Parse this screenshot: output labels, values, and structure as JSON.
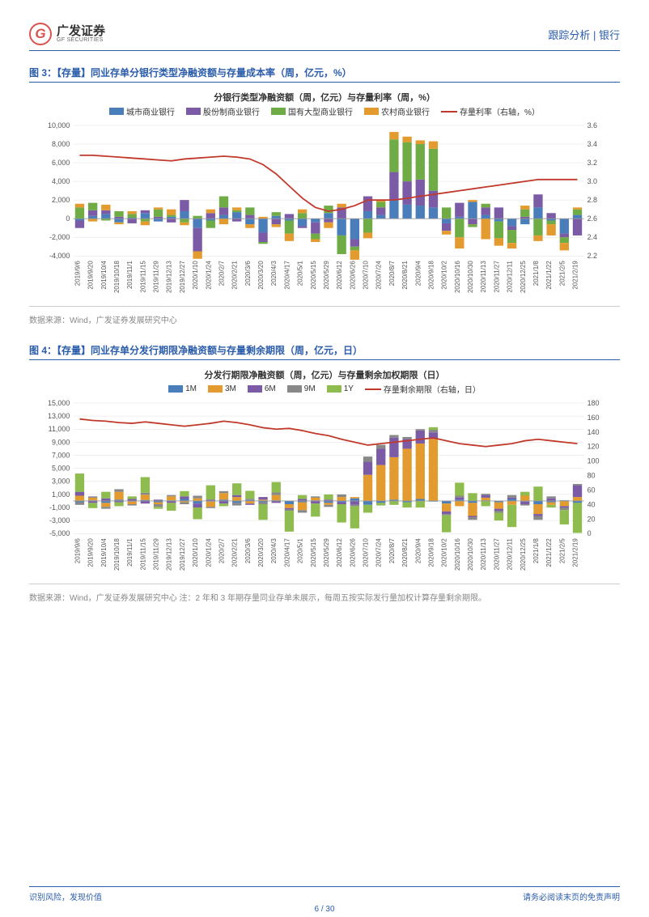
{
  "header": {
    "logo_cn": "广发证券",
    "logo_en": "GF SECURITIES",
    "logo_letter": "G",
    "right": "跟踪分析 | 银行"
  },
  "fig3": {
    "title": "图 3：【存量】同业存单分银行类型净融资额与存量成本率（周，亿元，%）",
    "subtitle": "分银行类型净融资额（周，亿元）与存量利率（周，%）",
    "legend": [
      {
        "label": "城市商业银行",
        "color": "#4a7ebb"
      },
      {
        "label": "股份制商业银行",
        "color": "#7b5ba6"
      },
      {
        "label": "国有大型商业银行",
        "color": "#6fac46"
      },
      {
        "label": "农村商业银行",
        "color": "#e39a2e"
      },
      {
        "label": "存量利率（右轴，%）",
        "color": "#c0392b",
        "type": "line"
      }
    ],
    "y_left": {
      "min": -4000,
      "max": 10000,
      "step": 2000,
      "ticks": [
        "-4,000",
        "-2,000",
        "0",
        "2,000",
        "4,000",
        "6,000",
        "8,000",
        "10,000"
      ]
    },
    "y_right": {
      "min": 2.2,
      "max": 3.6,
      "step": 0.2,
      "ticks": [
        "2.2",
        "2.4",
        "2.6",
        "2.8",
        "3.0",
        "3.2",
        "3.4",
        "3.6"
      ]
    },
    "x_labels": [
      "2019/9/6",
      "2019/9/20",
      "2019/10/4",
      "2019/10/18",
      "2019/11/1",
      "2019/11/15",
      "2019/11/29",
      "2019/12/13",
      "2019/12/27",
      "2020/1/10",
      "2020/1/24",
      "2020/2/7",
      "2020/2/21",
      "2020/3/6",
      "2020/3/20",
      "2020/4/3",
      "2020/4/17",
      "2020/5/1",
      "2020/5/15",
      "2020/5/29",
      "2020/6/12",
      "2020/6/26",
      "2020/7/10",
      "2020/7/24",
      "2020/8/7",
      "2020/8/21",
      "2020/9/4",
      "2020/9/18",
      "2020/10/2",
      "2020/10/16",
      "2020/10/30",
      "2020/11/13",
      "2020/11/27",
      "2020/12/11",
      "2020/12/25",
      "2021/1/8",
      "2021/1/22",
      "2021/2/5",
      "2021/2/19"
    ],
    "series": {
      "city": [
        -200,
        300,
        500,
        -400,
        100,
        600,
        -300,
        200,
        800,
        -1000,
        -200,
        400,
        700,
        -600,
        -1500,
        300,
        -200,
        -800,
        -400,
        600,
        -1800,
        -2200,
        800,
        400,
        2000,
        1500,
        1400,
        1200,
        -500,
        200,
        1800,
        400,
        -300,
        -800,
        -600,
        1200,
        -200,
        -1600,
        400
      ],
      "joint": [
        -800,
        600,
        400,
        200,
        -500,
        300,
        200,
        -400,
        1200,
        -2500,
        600,
        800,
        -300,
        400,
        -1000,
        -600,
        500,
        -200,
        -1200,
        -400,
        1200,
        -800,
        1600,
        800,
        3000,
        2500,
        2800,
        1800,
        -800,
        1500,
        -600,
        800,
        1200,
        -400,
        200,
        1400,
        600,
        -400,
        -1800
      ],
      "state": [
        1200,
        800,
        -200,
        600,
        400,
        -300,
        800,
        200,
        -400,
        300,
        -800,
        1200,
        200,
        800,
        -200,
        400,
        -1400,
        600,
        -600,
        800,
        -2000,
        -400,
        -1500,
        600,
        3500,
        4200,
        3800,
        4500,
        1200,
        -2000,
        -300,
        400,
        -1800,
        -1400,
        800,
        -1800,
        -400,
        -600,
        600
      ],
      "rural": [
        400,
        -300,
        600,
        -200,
        300,
        -400,
        200,
        600,
        -300,
        -800,
        400,
        -600,
        300,
        -400,
        200,
        -300,
        -800,
        400,
        -300,
        -600,
        400,
        -1000,
        -600,
        200,
        800,
        600,
        400,
        800,
        -400,
        -1200,
        200,
        -2200,
        -800,
        -600,
        400,
        -600,
        -1200,
        -800,
        200
      ],
      "rate": [
        3.28,
        3.28,
        3.27,
        3.26,
        3.25,
        3.24,
        3.23,
        3.22,
        3.24,
        3.25,
        3.26,
        3.27,
        3.26,
        3.24,
        3.18,
        3.08,
        2.95,
        2.82,
        2.72,
        2.68,
        2.7,
        2.74,
        2.8,
        2.8,
        2.8,
        2.82,
        2.84,
        2.86,
        2.88,
        2.9,
        2.92,
        2.94,
        2.96,
        2.98,
        3.0,
        3.02,
        3.02,
        3.02,
        3.02
      ]
    },
    "source": "数据来源：Wind，广发证券发展研究中心"
  },
  "fig4": {
    "title": "图 4：【存量】同业存单分发行期限净融资额与存量剩余期限（周，亿元，日）",
    "subtitle": "分发行期限净融资额（周，亿元）与存量剩余加权期限（日）",
    "legend": [
      {
        "label": "1M",
        "color": "#4a7ebb"
      },
      {
        "label": "3M",
        "color": "#e39a2e"
      },
      {
        "label": "6M",
        "color": "#7b5ba6"
      },
      {
        "label": "9M",
        "color": "#888888"
      },
      {
        "label": "1Y",
        "color": "#8fbc4f"
      },
      {
        "label": "存量剩余期限（右轴，日）",
        "color": "#c0392b",
        "type": "line"
      }
    ],
    "y_left": {
      "min": -5000,
      "max": 15000,
      "step": 2000,
      "ticks": [
        "-5,000",
        "-3,000",
        "-1,000",
        "1,000",
        "3,000",
        "5,000",
        "7,000",
        "9,000",
        "11,000",
        "13,000",
        "15,000"
      ]
    },
    "y_right": {
      "min": 0,
      "max": 180,
      "step": 20,
      "ticks": [
        "0",
        "20",
        "40",
        "60",
        "80",
        "100",
        "120",
        "140",
        "160",
        "180"
      ]
    },
    "x_labels": [
      "2019/9/6",
      "2019/9/20",
      "2019/10/4",
      "2019/10/18",
      "2019/11/1",
      "2019/11/15",
      "2019/11/29",
      "2019/12/13",
      "2019/12/27",
      "2020/1/10",
      "2020/1/24",
      "2020/2/7",
      "2020/2/21",
      "2020/3/6",
      "2020/3/20",
      "2020/4/3",
      "2020/4/17",
      "2020/5/1",
      "2020/5/15",
      "2020/5/29",
      "2020/6/12",
      "2020/6/26",
      "2020/7/10",
      "2020/7/24",
      "2020/8/7",
      "2020/8/21",
      "2020/9/4",
      "2020/9/18",
      "2020/10/2",
      "2020/10/16",
      "2020/10/30",
      "2020/11/13",
      "2020/11/27",
      "2020/12/11",
      "2020/12/25",
      "2021/1/8",
      "2021/1/22",
      "2021/2/5",
      "2021/2/19"
    ],
    "series": {
      "m1": [
        -200,
        100,
        -300,
        200,
        -100,
        150,
        -200,
        100,
        300,
        -400,
        -100,
        200,
        -300,
        150,
        -200,
        100,
        -500,
        -200,
        100,
        -300,
        -200,
        400,
        -600,
        -300,
        200,
        -200,
        300,
        -100,
        -400,
        200,
        -300,
        100,
        -200,
        300,
        -100,
        -500,
        -200,
        100,
        -300
      ],
      "m3": [
        800,
        400,
        -600,
        1200,
        -400,
        800,
        -300,
        600,
        -200,
        400,
        -800,
        1000,
        600,
        -400,
        200,
        800,
        -600,
        -1200,
        400,
        -300,
        600,
        200,
        4000,
        5500,
        6500,
        8000,
        8500,
        9500,
        -1200,
        -800,
        -2000,
        400,
        -1000,
        -600,
        800,
        -1500,
        -400,
        -800,
        600
      ],
      "m6": [
        600,
        -300,
        400,
        -200,
        300,
        -400,
        200,
        -300,
        400,
        -600,
        200,
        -400,
        300,
        -200,
        400,
        -300,
        -200,
        300,
        -400,
        200,
        -300,
        -600,
        2000,
        2500,
        3000,
        1500,
        2000,
        1000,
        -400,
        300,
        -200,
        400,
        -300,
        200,
        -400,
        -300,
        400,
        -200,
        1800
      ],
      "m9": [
        -400,
        200,
        -300,
        400,
        -200,
        300,
        -400,
        200,
        -300,
        400,
        -200,
        300,
        -400,
        200,
        -300,
        400,
        -200,
        -400,
        200,
        -300,
        400,
        -200,
        800,
        600,
        400,
        300,
        200,
        400,
        -200,
        300,
        -400,
        200,
        -300,
        400,
        -200,
        -600,
        300,
        -400,
        200
      ],
      "y1": [
        2800,
        -800,
        1000,
        -600,
        400,
        2400,
        -300,
        -1200,
        800,
        -1800,
        2200,
        -400,
        1800,
        1200,
        -2400,
        1600,
        -3200,
        600,
        -2000,
        800,
        -2800,
        -3400,
        -1200,
        -400,
        -600,
        -800,
        -1000,
        400,
        -2600,
        2000,
        1200,
        -800,
        -1200,
        -3400,
        600,
        2200,
        -400,
        -2200,
        -4600
      ],
      "duration": [
        158,
        156,
        155,
        153,
        152,
        154,
        152,
        150,
        148,
        150,
        152,
        155,
        153,
        150,
        146,
        144,
        145,
        142,
        138,
        135,
        130,
        126,
        122,
        124,
        126,
        128,
        130,
        132,
        128,
        124,
        122,
        120,
        122,
        124,
        128,
        130,
        128,
        126,
        124
      ]
    },
    "source": "数据来源：Wind，广发证券发展研究中心  注：2 年和 3 年期存量同业存单未展示，每周五按实际发行量加权计算存量剩余期限。"
  },
  "footer": {
    "left": "识别风险，发现价值",
    "right": "请务必阅读末页的免责声明",
    "page": "6 / 30"
  },
  "colors": {
    "brand": "#2a5caa",
    "red": "#c0392b",
    "grid": "#e0e0e0"
  }
}
